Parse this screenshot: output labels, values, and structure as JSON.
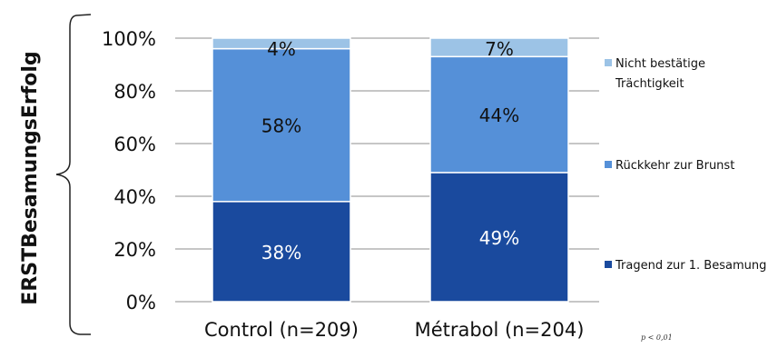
{
  "chart_data": {
    "type": "bar",
    "stacked": true,
    "categories": [
      "Control (n=209)",
      "Métrabol (n=204)"
    ],
    "series": [
      {
        "name": "Tragend zur 1. Besamung",
        "values": [
          38,
          49
        ],
        "labels": [
          "38%",
          "49%"
        ],
        "color": "#1a4a9e"
      },
      {
        "name": "Rückkehr zur Brunst",
        "values": [
          58,
          44
        ],
        "labels": [
          "58%",
          "44%"
        ],
        "color": "#5590d8"
      },
      {
        "name": "Nicht bestätige Trächtigkeit",
        "values": [
          4,
          7
        ],
        "labels": [
          "4%",
          "7%"
        ],
        "color": "#9cc3e6"
      }
    ],
    "ylabel": "ERSTBesamungsErfolg",
    "ylim": [
      0,
      100
    ],
    "yticks": [
      "0%",
      "20%",
      "40%",
      "60%",
      "80%",
      "100%"
    ],
    "grid": true,
    "legend_position": "right",
    "legend": [
      {
        "lines": [
          "Nicht bestätige",
          "Trächtigkeit"
        ],
        "color": "#9cc3e6"
      },
      {
        "lines": [
          "Rückkehr zur Brunst"
        ],
        "color": "#5590d8"
      },
      {
        "lines": [
          "Tragend zur 1. Besamung"
        ],
        "color": "#1a4a9e"
      }
    ],
    "annotation": "p < 0,01"
  }
}
